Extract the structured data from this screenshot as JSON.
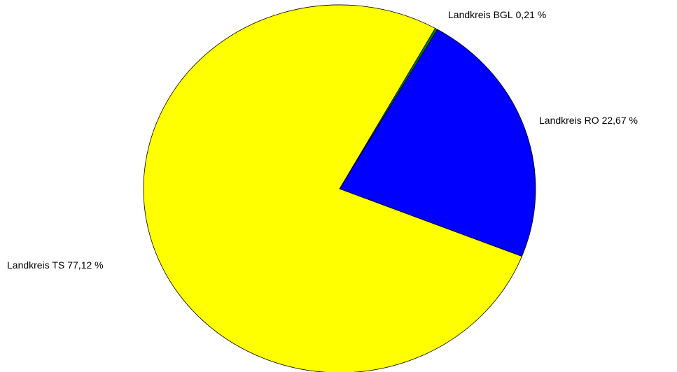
{
  "chart_data": {
    "type": "pie",
    "categories": [
      "Landkreis BGL",
      "Landkreis RO",
      "Landkreis TS"
    ],
    "values": [
      0.21,
      22.67,
      77.12
    ],
    "value_labels": [
      "0,21 %",
      "22,67 %",
      "77,12 %"
    ],
    "colors": [
      "#008000",
      "#0000ff",
      "#ffff00"
    ]
  }
}
